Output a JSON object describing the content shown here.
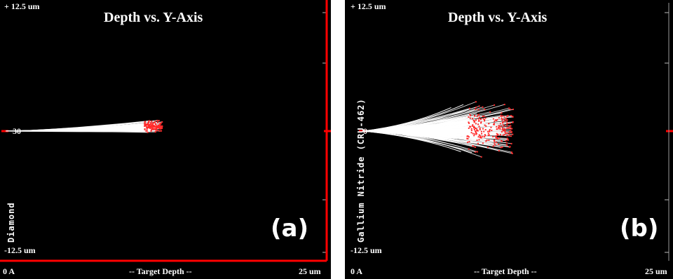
{
  "figures": [
    {
      "id": "a",
      "title": "Depth vs. Y-Axis",
      "y_top_label": "+ 12.5 um",
      "y_bottom_label": "-12.5 um",
      "x_left_label": "0 A",
      "x_center_label": "-- Target Depth --",
      "x_right_label": "25 um",
      "center_label": "30",
      "material_label": "Diamond",
      "panel_tag": "(a)"
    },
    {
      "id": "b",
      "title": "Depth vs. Y-Axis",
      "y_top_label": "+ 12.5 um",
      "y_bottom_label": "-12.5 um",
      "x_left_label": "0 A",
      "x_center_label": "-- Target Depth --",
      "x_right_label": "25 um",
      "center_label": "0",
      "material_label": "Gallium Nitride (CRU-462)",
      "panel_tag": "(b)"
    }
  ],
  "colors": {
    "background": "#000000",
    "track": "#ffffff",
    "endpoint": "#ff2a2a",
    "frame": "#ff0000"
  },
  "chart_data": [
    {
      "type": "scatter",
      "title": "Depth vs. Y-Axis",
      "xlabel": "-- Target Depth --",
      "ylabel": "",
      "xlim": [
        0,
        25
      ],
      "ylim": [
        -12.5,
        12.5
      ],
      "x_unit": "um",
      "y_unit": "um",
      "series": [
        {
          "name": "",
          "x_end_range": [
            10.8,
            12.2
          ],
          "y_end_range": [
            -0.7,
            1.7
          ]
        }
      ]
    },
    {
      "type": "scatter",
      "title": "Depth vs. Y-Axis",
      "xlabel": "-- Target Depth --",
      "ylabel": "",
      "xlim": [
        0,
        25
      ],
      "ylim": [
        -12.5,
        12.5
      ],
      "x_unit": "um",
      "y_unit": "um",
      "series": [
        {
          "name": "",
          "x_end_range": [
            8.5,
            12.3
          ],
          "y_end_range": [
            -4.0,
            4.5
          ]
        }
      ]
    }
  ]
}
